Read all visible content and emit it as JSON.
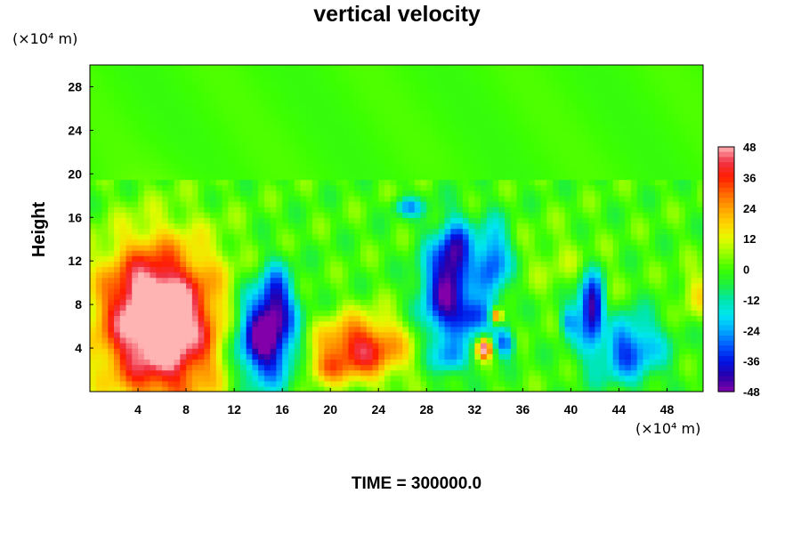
{
  "chart_data": {
    "type": "heatmap",
    "title": "vertical velocity",
    "ylabel": "Height",
    "x_unit": "(×10⁴ m)",
    "y_unit": "(×10⁴ m)",
    "xlim": [
      0,
      51
    ],
    "ylim": [
      0,
      30
    ],
    "x_ticks": [
      "4",
      "8",
      "12",
      "16",
      "20",
      "24",
      "28",
      "32",
      "36",
      "40",
      "44",
      "48"
    ],
    "y_ticks": [
      "4",
      "8",
      "12",
      "16",
      "20",
      "24",
      "28"
    ],
    "x_tick_values": [
      4,
      8,
      12,
      16,
      20,
      24,
      28,
      32,
      36,
      40,
      44,
      48
    ],
    "y_tick_values": [
      4,
      8,
      12,
      16,
      20,
      24,
      28
    ],
    "colorbar": {
      "min": -48,
      "max": 48,
      "ticks": [
        "48",
        "36",
        "24",
        "12",
        "0",
        "-12",
        "-24",
        "-36",
        "-48"
      ],
      "tick_values": [
        48,
        36,
        24,
        12,
        0,
        -12,
        -24,
        -36,
        -48
      ]
    },
    "time_label": "TIME = 300000.0",
    "features": [
      {
        "type": "updraft",
        "x": 6,
        "y": 6,
        "sx": 3.6,
        "sy": 5.0,
        "amp": 58
      },
      {
        "type": "updraft",
        "x": 4.5,
        "y": 9,
        "sx": 2.2,
        "sy": 3.2,
        "amp": 14
      },
      {
        "type": "downdraft",
        "x": 14.5,
        "y": 5,
        "sx": 1.8,
        "sy": 3.0,
        "amp": -55
      },
      {
        "type": "downdraft",
        "x": 15.5,
        "y": 9,
        "sx": 0.9,
        "sy": 2.0,
        "amp": -24
      },
      {
        "type": "updraft",
        "x": 22.5,
        "y": 4,
        "sx": 2.6,
        "sy": 2.0,
        "amp": 40
      },
      {
        "type": "updraft",
        "x": 19.5,
        "y": 2.2,
        "sx": 1.2,
        "sy": 0.9,
        "amp": 14
      },
      {
        "type": "downdraft",
        "x": 29.5,
        "y": 9,
        "sx": 1.4,
        "sy": 3.5,
        "amp": -42
      },
      {
        "type": "downdraft",
        "x": 30.5,
        "y": 13,
        "sx": 0.9,
        "sy": 2.0,
        "amp": -28
      },
      {
        "type": "downdraft",
        "x": 33.5,
        "y": 12,
        "sx": 1.0,
        "sy": 2.5,
        "amp": -32
      },
      {
        "type": "downdraft",
        "x": 32,
        "y": 7,
        "sx": 1.0,
        "sy": 1.2,
        "amp": -30
      },
      {
        "type": "updraft",
        "x": 32.8,
        "y": 4,
        "sx": 0.4,
        "sy": 0.6,
        "amp": 50
      },
      {
        "type": "updraft",
        "x": 33.8,
        "y": 7,
        "sx": 0.35,
        "sy": 0.5,
        "amp": 42
      },
      {
        "type": "downdraft",
        "x": 34.5,
        "y": 4.5,
        "sx": 0.6,
        "sy": 0.9,
        "amp": -30
      },
      {
        "type": "downdraft",
        "x": 26.5,
        "y": 17,
        "sx": 0.9,
        "sy": 0.6,
        "amp": -22
      },
      {
        "type": "downdraft",
        "x": 30,
        "y": 3,
        "sx": 1.0,
        "sy": 1.0,
        "amp": -18
      },
      {
        "type": "downdraft",
        "x": 41.8,
        "y": 8,
        "sx": 0.8,
        "sy": 2.0,
        "amp": -48
      },
      {
        "type": "downdraft",
        "x": 44.5,
        "y": 4,
        "sx": 2.2,
        "sy": 2.2,
        "amp": -32
      },
      {
        "type": "updraft",
        "x": 43,
        "y": 7,
        "sx": 0.6,
        "sy": 2.5,
        "amp": 16
      },
      {
        "type": "downdraft",
        "x": 39.8,
        "y": 6.5,
        "sx": 0.5,
        "sy": 1.0,
        "amp": -22
      },
      {
        "type": "updraft",
        "x": 50.5,
        "y": 9,
        "sx": 1.0,
        "sy": 1.5,
        "amp": 14
      },
      {
        "type": "updraft",
        "x": 39,
        "y": 12,
        "sx": 2.0,
        "sy": 2.0,
        "amp": 6
      }
    ]
  }
}
